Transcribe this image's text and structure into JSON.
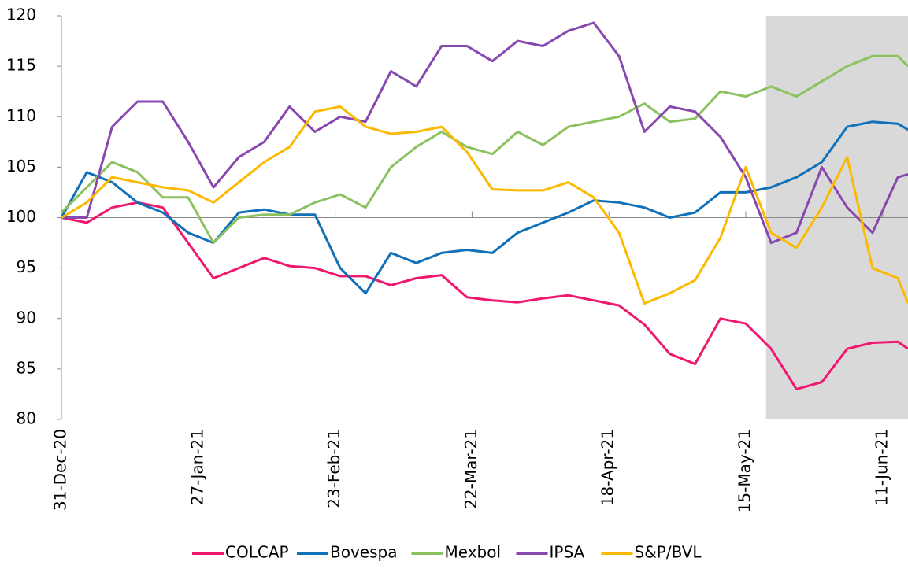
{
  "chart_data": {
    "type": "line",
    "x": [
      "2020-12-31",
      "2021-01-05",
      "2021-01-10",
      "2021-01-15",
      "2021-01-20",
      "2021-01-25",
      "2021-01-30",
      "2021-02-04",
      "2021-02-09",
      "2021-02-14",
      "2021-02-19",
      "2021-02-24",
      "2021-03-01",
      "2021-03-06",
      "2021-03-11",
      "2021-03-16",
      "2021-03-21",
      "2021-03-26",
      "2021-03-31",
      "2021-04-05",
      "2021-04-10",
      "2021-04-15",
      "2021-04-20",
      "2021-04-25",
      "2021-04-30",
      "2021-05-05",
      "2021-05-10",
      "2021-05-15",
      "2021-05-20",
      "2021-05-25",
      "2021-05-30",
      "2021-06-04",
      "2021-06-09",
      "2021-06-14",
      "2021-06-16"
    ],
    "series": [
      {
        "name": "COLCAP",
        "color": "#f0186e",
        "values": [
          100,
          99.5,
          101,
          101.5,
          101,
          97.5,
          94,
          95,
          96,
          95.2,
          95,
          94.2,
          94.2,
          93.3,
          94,
          94.3,
          92.1,
          91.8,
          91.6,
          92,
          92.3,
          91.8,
          91.3,
          89.4,
          86.5,
          85.5,
          90,
          89.5,
          87,
          83,
          83.7,
          87,
          87.6,
          87.7,
          87
        ]
      },
      {
        "name": "Bovespa",
        "color": "#1070b8",
        "values": [
          100,
          104.5,
          103.5,
          101.5,
          100.5,
          98.5,
          97.5,
          100.5,
          100.8,
          100.3,
          100.3,
          95,
          92.5,
          96.5,
          95.5,
          96.5,
          96.8,
          96.5,
          98.5,
          99.5,
          100.5,
          101.7,
          101.5,
          101,
          100,
          100.5,
          102.5,
          102.5,
          103,
          104,
          105.5,
          109,
          109.5,
          109.3,
          108.7
        ]
      },
      {
        "name": "Mexbol",
        "color": "#8cc160",
        "values": [
          100.5,
          103,
          105.5,
          104.5,
          102,
          102,
          97.5,
          100,
          100.3,
          100.3,
          101.5,
          102.3,
          101,
          105,
          107,
          108.5,
          107,
          106.3,
          108.5,
          107.2,
          109,
          109.5,
          110,
          111.3,
          109.5,
          109.8,
          112.5,
          112,
          113,
          112,
          113.5,
          115,
          116,
          116,
          115
        ]
      },
      {
        "name": "IPSA",
        "color": "#8848b0",
        "values": [
          100,
          100,
          109,
          111.5,
          111.5,
          107.5,
          103,
          106,
          107.5,
          111,
          108.5,
          110,
          109.5,
          114.5,
          113,
          117,
          117,
          115.5,
          117.5,
          117,
          118.5,
          119.3,
          116,
          108.5,
          111,
          110.5,
          108,
          104,
          97.5,
          98.5,
          105,
          101,
          98.5,
          104,
          104.3
        ]
      },
      {
        "name": "S&P/BVL",
        "color": "#fbb900",
        "values": [
          100,
          101.5,
          104,
          103.5,
          103,
          102.7,
          101.5,
          103.5,
          105.5,
          107,
          110.5,
          111,
          109,
          108.3,
          108.5,
          109,
          106.5,
          102.8,
          102.7,
          102.7,
          103.5,
          102,
          98.5,
          91.5,
          92.5,
          93.8,
          98,
          105,
          98.5,
          97,
          101,
          106,
          95,
          94,
          91.5
        ]
      }
    ],
    "xlim": [
      "2020-12-31",
      "2021-06-16"
    ],
    "xticks": [
      {
        "value": "2020-12-31",
        "label": "31-Dec-20"
      },
      {
        "value": "2021-01-27",
        "label": "27-Jan-21"
      },
      {
        "value": "2021-02-23",
        "label": "23-Feb-21"
      },
      {
        "value": "2021-03-22",
        "label": "22-Mar-21"
      },
      {
        "value": "2021-04-18",
        "label": "18-Apr-21"
      },
      {
        "value": "2021-05-15",
        "label": "15-May-21"
      },
      {
        "value": "2021-06-11",
        "label": "11-Jun-21"
      }
    ],
    "ylim": [
      80,
      120
    ],
    "yticks": [
      80,
      85,
      90,
      95,
      100,
      105,
      110,
      115,
      120
    ],
    "highlight": {
      "from": "2021-05-19",
      "to": "2021-06-16"
    },
    "legend": "bottom"
  }
}
